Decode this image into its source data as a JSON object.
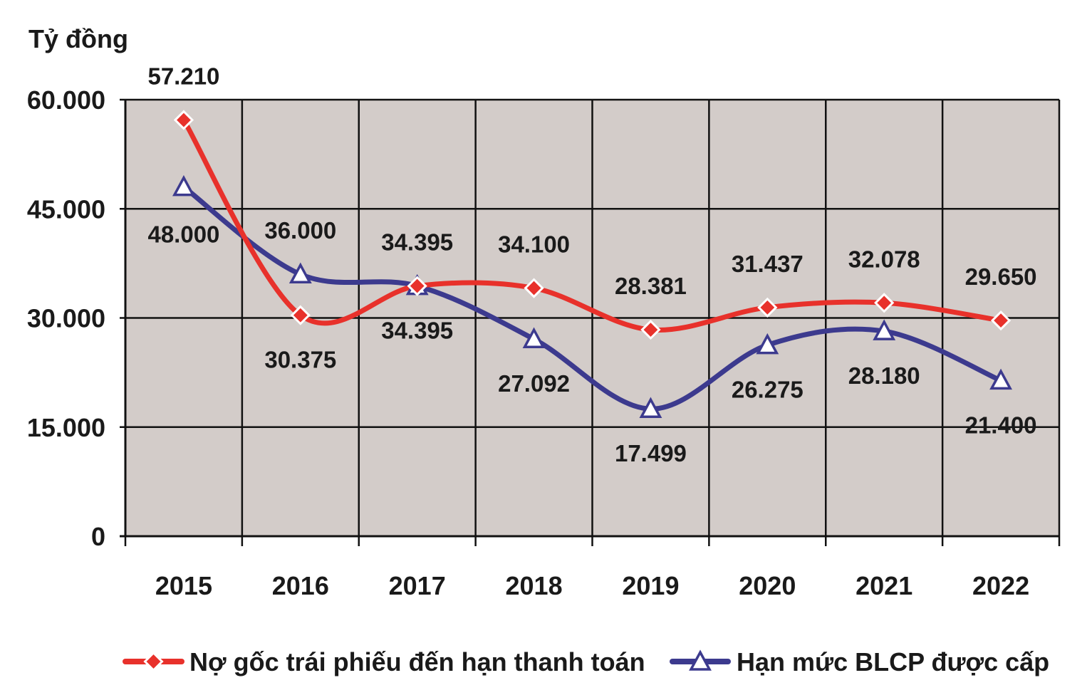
{
  "chart_data": {
    "type": "line",
    "y_unit": "Tỷ đồng",
    "categories": [
      "2015",
      "2016",
      "2017",
      "2018",
      "2019",
      "2020",
      "2021",
      "2022"
    ],
    "ylim": [
      0,
      60000
    ],
    "yticks": [
      0,
      15000,
      30000,
      45000,
      60000
    ],
    "ytick_labels": [
      "0",
      "15.000",
      "30.000",
      "45.000",
      "60.000"
    ],
    "grid": true,
    "plot_background": "#d3ccc9",
    "legend_position": "bottom",
    "series": [
      {
        "name": "Nợ gốc trái phiếu đến hạn thanh toán",
        "color": "#e8312b",
        "marker": "diamond",
        "values": [
          57210,
          30375,
          34395,
          34100,
          28381,
          31437,
          32078,
          29650
        ],
        "labels": [
          "57.210",
          "30.375",
          "34.395",
          "34.100",
          "28.381",
          "31.437",
          "32.078",
          "29.650"
        ]
      },
      {
        "name": "Hạn mức BLCP được cấp",
        "color": "#3c3a8e",
        "marker": "triangle",
        "values": [
          48000,
          36000,
          34395,
          27092,
          17499,
          26275,
          28180,
          21400
        ],
        "labels": [
          "48.000",
          "36.000",
          "34.395",
          "27.092",
          "17.499",
          "26.275",
          "28.180",
          "21.400"
        ]
      }
    ]
  }
}
